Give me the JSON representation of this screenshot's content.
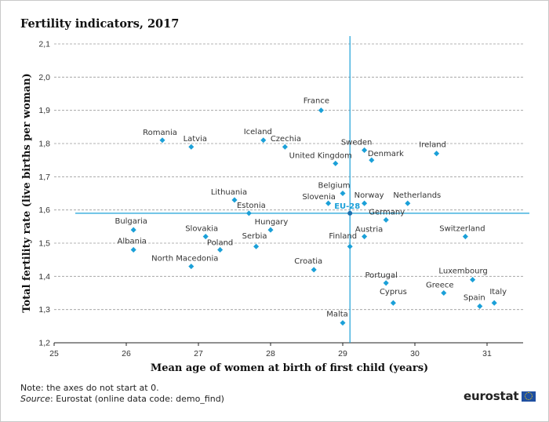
{
  "title": "Fertility indicators, 2017",
  "chart_data": {
    "type": "scatter",
    "xlabel": "Mean age of women at birth of first child (years)",
    "ylabel": "Total fertility rate (live births per woman)",
    "xlim": [
      25,
      31.5
    ],
    "ylim": [
      1.2,
      2.1
    ],
    "x_ticks": [
      "25",
      "26",
      "27",
      "28",
      "29",
      "30",
      "31"
    ],
    "y_ticks": [
      "1,2",
      "1,3",
      "1,4",
      "1,5",
      "1,6",
      "1,7",
      "1,8",
      "1,9",
      "2,0",
      "2,1"
    ],
    "y_grid": true,
    "marker_color": "#1ba0d8",
    "reference": {
      "name": "EU-28",
      "x": 29.1,
      "y": 1.59,
      "color": "#1ba0d8"
    },
    "points": [
      {
        "name": "France",
        "x": 28.7,
        "y": 1.9
      },
      {
        "name": "Sweden",
        "x": 29.3,
        "y": 1.78
      },
      {
        "name": "Denmark",
        "x": 29.4,
        "y": 1.75
      },
      {
        "name": "Ireland",
        "x": 30.3,
        "y": 1.77
      },
      {
        "name": "United Kingdom",
        "x": 28.9,
        "y": 1.74
      },
      {
        "name": "Romania",
        "x": 26.5,
        "y": 1.81
      },
      {
        "name": "Latvia",
        "x": 26.9,
        "y": 1.79
      },
      {
        "name": "Iceland",
        "x": 27.9,
        "y": 1.81
      },
      {
        "name": "Czechia",
        "x": 28.2,
        "y": 1.79
      },
      {
        "name": "Belgium",
        "x": 29.0,
        "y": 1.65
      },
      {
        "name": "Lithuania",
        "x": 27.5,
        "y": 1.63
      },
      {
        "name": "Slovenia",
        "x": 28.8,
        "y": 1.62
      },
      {
        "name": "Norway",
        "x": 29.3,
        "y": 1.62
      },
      {
        "name": "Netherlands",
        "x": 29.9,
        "y": 1.62
      },
      {
        "name": "Estonia",
        "x": 27.7,
        "y": 1.59
      },
      {
        "name": "Germany",
        "x": 29.6,
        "y": 1.57
      },
      {
        "name": "Bulgaria",
        "x": 26.1,
        "y": 1.54
      },
      {
        "name": "Hungary",
        "x": 28.0,
        "y": 1.54
      },
      {
        "name": "Slovakia",
        "x": 27.1,
        "y": 1.52
      },
      {
        "name": "Austria",
        "x": 29.3,
        "y": 1.52
      },
      {
        "name": "Switzerland",
        "x": 30.7,
        "y": 1.52
      },
      {
        "name": "Albania",
        "x": 26.1,
        "y": 1.48
      },
      {
        "name": "Poland",
        "x": 27.3,
        "y": 1.48
      },
      {
        "name": "Serbia",
        "x": 27.8,
        "y": 1.49
      },
      {
        "name": "Finland",
        "x": 29.1,
        "y": 1.49
      },
      {
        "name": "North Macedonia",
        "x": 26.9,
        "y": 1.43
      },
      {
        "name": "Croatia",
        "x": 28.6,
        "y": 1.42
      },
      {
        "name": "Portugal",
        "x": 29.6,
        "y": 1.38
      },
      {
        "name": "Luxembourg",
        "x": 30.8,
        "y": 1.39
      },
      {
        "name": "Greece",
        "x": 30.4,
        "y": 1.35
      },
      {
        "name": "Cyprus",
        "x": 29.7,
        "y": 1.32
      },
      {
        "name": "Spain",
        "x": 30.9,
        "y": 1.31
      },
      {
        "name": "Italy",
        "x": 31.1,
        "y": 1.32
      },
      {
        "name": "Malta",
        "x": 29.0,
        "y": 1.26
      }
    ]
  },
  "note": {
    "text": "Note: the axes do not start at 0.",
    "source_label": "Source",
    "source_text": ": Eurostat (online data code: demo_find)"
  },
  "logo": {
    "text": "eurostat",
    "flag": "eu-flag-icon"
  }
}
